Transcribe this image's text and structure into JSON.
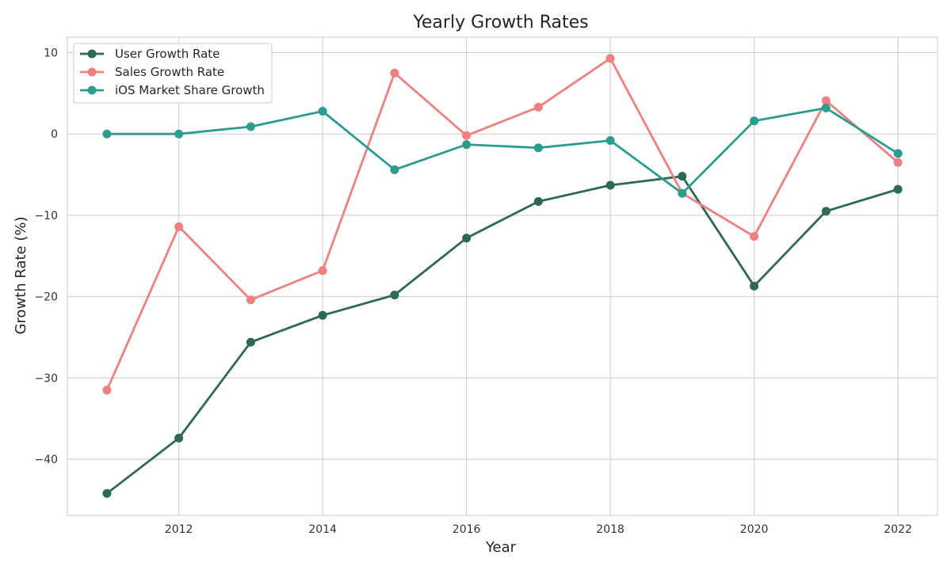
{
  "chart_data": {
    "type": "line",
    "title": "Yearly Growth Rates",
    "xlabel": "Year",
    "ylabel": "Growth Rate (%)",
    "x": [
      2011,
      2012,
      2013,
      2014,
      2015,
      2016,
      2017,
      2018,
      2019,
      2020,
      2021,
      2022
    ],
    "xlim": [
      2010.45,
      2022.55
    ],
    "ylim": [
      -46.9,
      11.9
    ],
    "x_ticks": [
      2012,
      2014,
      2016,
      2018,
      2020,
      2022
    ],
    "y_ticks": [
      10,
      0,
      -10,
      -20,
      -30,
      -40
    ],
    "y_tick_labels": [
      "10",
      "0",
      "−10",
      "−20",
      "−30",
      "−40"
    ],
    "grid": true,
    "legend_position": "top-left",
    "markers": "circle",
    "series": [
      {
        "name": "User Growth Rate",
        "color": "#2d6a4f",
        "values": [
          -44.2,
          -37.4,
          -25.6,
          -22.3,
          -19.8,
          -12.8,
          -8.3,
          -6.3,
          -5.2,
          -18.7,
          -9.5,
          -6.8
        ]
      },
      {
        "name": "Sales Growth Rate",
        "color": "#f08080",
        "values": [
          -31.5,
          -11.4,
          -20.4,
          -16.8,
          7.5,
          -0.2,
          3.3,
          9.3,
          -7.3,
          -12.6,
          4.1,
          -3.5
        ]
      },
      {
        "name": "iOS Market Share Growth",
        "color": "#2a9d8f",
        "values": [
          0.0,
          0.0,
          0.9,
          2.8,
          -4.4,
          -1.3,
          -1.7,
          -0.8,
          -7.3,
          1.6,
          3.2,
          -2.4
        ]
      }
    ]
  }
}
